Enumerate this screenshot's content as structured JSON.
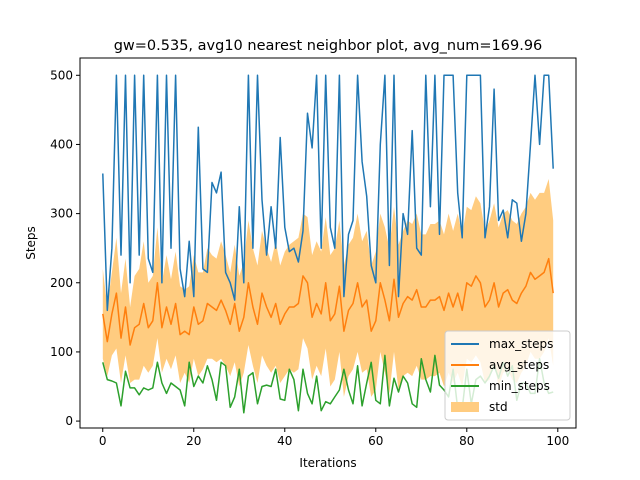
{
  "chart_data": {
    "type": "line",
    "title": "gw=0.535, avg10 nearest neighbor plot, avg_num=169.96",
    "xlabel": "Iterations",
    "ylabel": "Steps",
    "xlim": [
      -5,
      104
    ],
    "ylim": [
      -10,
      525
    ],
    "xticks": [
      0,
      20,
      40,
      60,
      80,
      100
    ],
    "yticks": [
      0,
      100,
      200,
      300,
      400,
      500
    ],
    "grid": false,
    "legend_position": "lower right",
    "x": [
      0,
      1,
      2,
      3,
      4,
      5,
      6,
      7,
      8,
      9,
      10,
      11,
      12,
      13,
      14,
      15,
      16,
      17,
      18,
      19,
      20,
      21,
      22,
      23,
      24,
      25,
      26,
      27,
      28,
      29,
      30,
      31,
      32,
      33,
      34,
      35,
      36,
      37,
      38,
      39,
      40,
      41,
      42,
      43,
      44,
      45,
      46,
      47,
      48,
      49,
      50,
      51,
      52,
      53,
      54,
      55,
      56,
      57,
      58,
      59,
      60,
      61,
      62,
      63,
      64,
      65,
      66,
      67,
      68,
      69,
      70,
      71,
      72,
      73,
      74,
      75,
      76,
      77,
      78,
      79,
      80,
      81,
      82,
      83,
      84,
      85,
      86,
      87,
      88,
      89,
      90,
      91,
      92,
      93,
      94,
      95,
      96,
      97,
      98,
      99
    ],
    "series": [
      {
        "name": "max_steps",
        "color": "#1f77b4",
        "values": [
          358,
          160,
          250,
          500,
          240,
          500,
          200,
          500,
          240,
          500,
          235,
          215,
          500,
          200,
          500,
          250,
          500,
          220,
          180,
          260,
          180,
          425,
          220,
          215,
          345,
          330,
          360,
          215,
          200,
          175,
          310,
          200,
          500,
          250,
          500,
          320,
          240,
          310,
          250,
          410,
          280,
          245,
          250,
          230,
          275,
          445,
          395,
          500,
          250,
          500,
          280,
          250,
          500,
          180,
          270,
          290,
          500,
          375,
          325,
          225,
          200,
          400,
          500,
          225,
          500,
          180,
          300,
          270,
          420,
          250,
          240,
          500,
          310,
          500,
          270,
          500,
          500,
          500,
          330,
          265,
          500,
          500,
          500,
          500,
          265,
          310,
          480,
          290,
          305,
          265,
          320,
          315,
          260,
          300,
          400,
          500,
          400,
          500,
          500,
          365
        ]
      },
      {
        "name": "avg_steps",
        "color": "#ff7f0e",
        "values": [
          155,
          115,
          155,
          185,
          120,
          165,
          110,
          135,
          140,
          170,
          135,
          145,
          200,
          135,
          165,
          140,
          170,
          125,
          130,
          125,
          165,
          140,
          145,
          170,
          165,
          160,
          175,
          160,
          140,
          170,
          130,
          150,
          200,
          165,
          140,
          185,
          165,
          150,
          170,
          140,
          155,
          165,
          165,
          170,
          210,
          200,
          150,
          170,
          155,
          200,
          145,
          155,
          195,
          130,
          160,
          170,
          200,
          165,
          175,
          130,
          145,
          200,
          175,
          145,
          205,
          150,
          170,
          180,
          175,
          190,
          165,
          165,
          175,
          175,
          180,
          160,
          185,
          165,
          185,
          160,
          200,
          195,
          210,
          200,
          165,
          175,
          200,
          165,
          185,
          190,
          175,
          170,
          185,
          195,
          215,
          205,
          210,
          215,
          235,
          185
        ]
      },
      {
        "name": "min_steps",
        "color": "#2ca02c",
        "values": [
          85,
          60,
          58,
          55,
          22,
          72,
          48,
          48,
          38,
          48,
          45,
          48,
          85,
          55,
          40,
          55,
          50,
          45,
          22,
          85,
          50,
          65,
          55,
          80,
          60,
          30,
          85,
          80,
          20,
          35,
          75,
          12,
          65,
          70,
          25,
          50,
          52,
          50,
          75,
          32,
          30,
          75,
          60,
          15,
          75,
          40,
          25,
          65,
          15,
          28,
          25,
          35,
          45,
          75,
          45,
          25,
          80,
          22,
          55,
          85,
          30,
          25,
          95,
          22,
          62,
          42,
          65,
          55,
          25,
          20,
          90,
          60,
          42,
          95,
          52,
          45,
          35,
          75,
          18,
          18,
          75,
          25,
          60,
          65,
          55,
          65,
          80,
          62,
          85,
          65,
          80,
          30,
          55,
          55,
          40,
          40,
          90,
          55,
          40,
          42
        ]
      }
    ],
    "band": {
      "name": "std",
      "color": "#ffcc80",
      "upper": [
        220,
        165,
        215,
        265,
        185,
        235,
        165,
        210,
        220,
        260,
        200,
        210,
        280,
        200,
        240,
        205,
        245,
        195,
        190,
        195,
        240,
        215,
        215,
        250,
        240,
        235,
        260,
        240,
        215,
        255,
        210,
        230,
        290,
        250,
        225,
        275,
        250,
        230,
        260,
        225,
        245,
        255,
        260,
        265,
        300,
        295,
        240,
        260,
        245,
        295,
        240,
        250,
        290,
        225,
        255,
        265,
        300,
        260,
        275,
        225,
        245,
        300,
        280,
        250,
        310,
        255,
        275,
        290,
        285,
        300,
        270,
        270,
        285,
        285,
        290,
        270,
        300,
        275,
        300,
        270,
        310,
        305,
        325,
        315,
        275,
        290,
        315,
        280,
        300,
        305,
        290,
        285,
        300,
        310,
        330,
        320,
        330,
        330,
        350,
        290
      ],
      "lower": [
        90,
        65,
        95,
        105,
        55,
        95,
        55,
        60,
        60,
        80,
        70,
        80,
        120,
        70,
        90,
        75,
        95,
        55,
        70,
        55,
        90,
        65,
        75,
        90,
        90,
        85,
        90,
        80,
        65,
        85,
        50,
        70,
        110,
        80,
        55,
        95,
        80,
        70,
        80,
        55,
        65,
        75,
        70,
        75,
        120,
        105,
        60,
        80,
        65,
        105,
        50,
        60,
        100,
        35,
        65,
        75,
        100,
        70,
        75,
        35,
        45,
        100,
        70,
        40,
        100,
        45,
        65,
        70,
        65,
        80,
        60,
        60,
        65,
        65,
        70,
        50,
        70,
        55,
        70,
        50,
        90,
        85,
        95,
        85,
        55,
        60,
        85,
        50,
        70,
        75,
        60,
        55,
        70,
        80,
        100,
        90,
        90,
        100,
        120,
        80
      ]
    }
  }
}
